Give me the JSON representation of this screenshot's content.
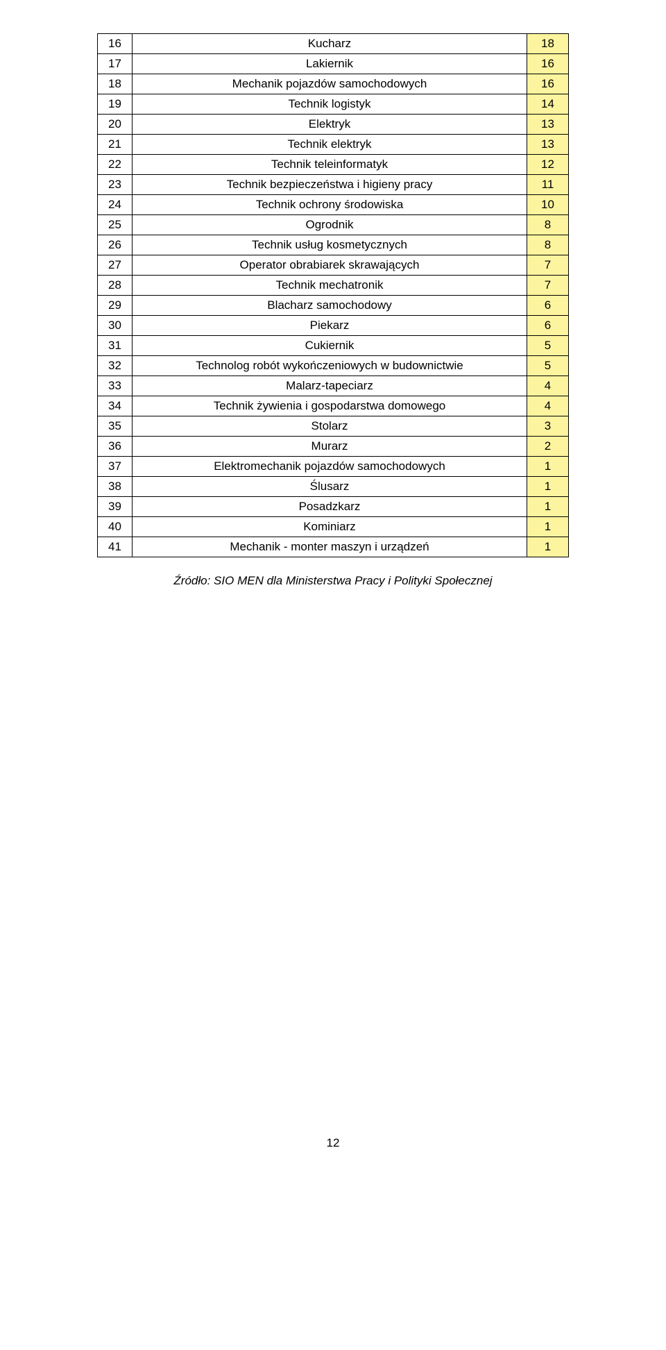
{
  "table": {
    "columns": {
      "num_width": 50,
      "val_width": 60
    },
    "cell_border_color": "#000000",
    "row_bg_highlight": "#fcf49e",
    "row_bg_default": "#ffffff",
    "font_size": 17,
    "rows": [
      {
        "num": "16",
        "name": "Kucharz",
        "val": "18"
      },
      {
        "num": "17",
        "name": "Lakiernik",
        "val": "16"
      },
      {
        "num": "18",
        "name": "Mechanik pojazdów samochodowych",
        "val": "16"
      },
      {
        "num": "19",
        "name": "Technik logistyk",
        "val": "14"
      },
      {
        "num": "20",
        "name": "Elektryk",
        "val": "13"
      },
      {
        "num": "21",
        "name": "Technik elektryk",
        "val": "13"
      },
      {
        "num": "22",
        "name": "Technik teleinformatyk",
        "val": "12"
      },
      {
        "num": "23",
        "name": "Technik bezpieczeństwa i higieny pracy",
        "val": "11"
      },
      {
        "num": "24",
        "name": "Technik ochrony środowiska",
        "val": "10"
      },
      {
        "num": "25",
        "name": "Ogrodnik",
        "val": "8"
      },
      {
        "num": "26",
        "name": "Technik usług kosmetycznych",
        "val": "8"
      },
      {
        "num": "27",
        "name": "Operator obrabiarek skrawających",
        "val": "7"
      },
      {
        "num": "28",
        "name": "Technik mechatronik",
        "val": "7"
      },
      {
        "num": "29",
        "name": "Blacharz samochodowy",
        "val": "6"
      },
      {
        "num": "30",
        "name": "Piekarz",
        "val": "6"
      },
      {
        "num": "31",
        "name": "Cukiernik",
        "val": "5"
      },
      {
        "num": "32",
        "name": "Technolog robót wykończeniowych w budownictwie",
        "val": "5"
      },
      {
        "num": "33",
        "name": "Malarz-tapeciarz",
        "val": "4"
      },
      {
        "num": "34",
        "name": "Technik żywienia i gospodarstwa domowego",
        "val": "4"
      },
      {
        "num": "35",
        "name": "Stolarz",
        "val": "3"
      },
      {
        "num": "36",
        "name": "Murarz",
        "val": "2"
      },
      {
        "num": "37",
        "name": "Elektromechanik pojazdów samochodowych",
        "val": "1"
      },
      {
        "num": "38",
        "name": "Ślusarz",
        "val": "1"
      },
      {
        "num": "39",
        "name": "Posadzkarz",
        "val": "1"
      },
      {
        "num": "40",
        "name": "Kominiarz",
        "val": "1"
      },
      {
        "num": "41",
        "name": "Mechanik - monter maszyn i urządzeń",
        "val": "1"
      }
    ]
  },
  "source_note": "Źródło: SIO MEN dla Ministerstwa Pracy i Polityki Społecznej",
  "page_number": "12"
}
